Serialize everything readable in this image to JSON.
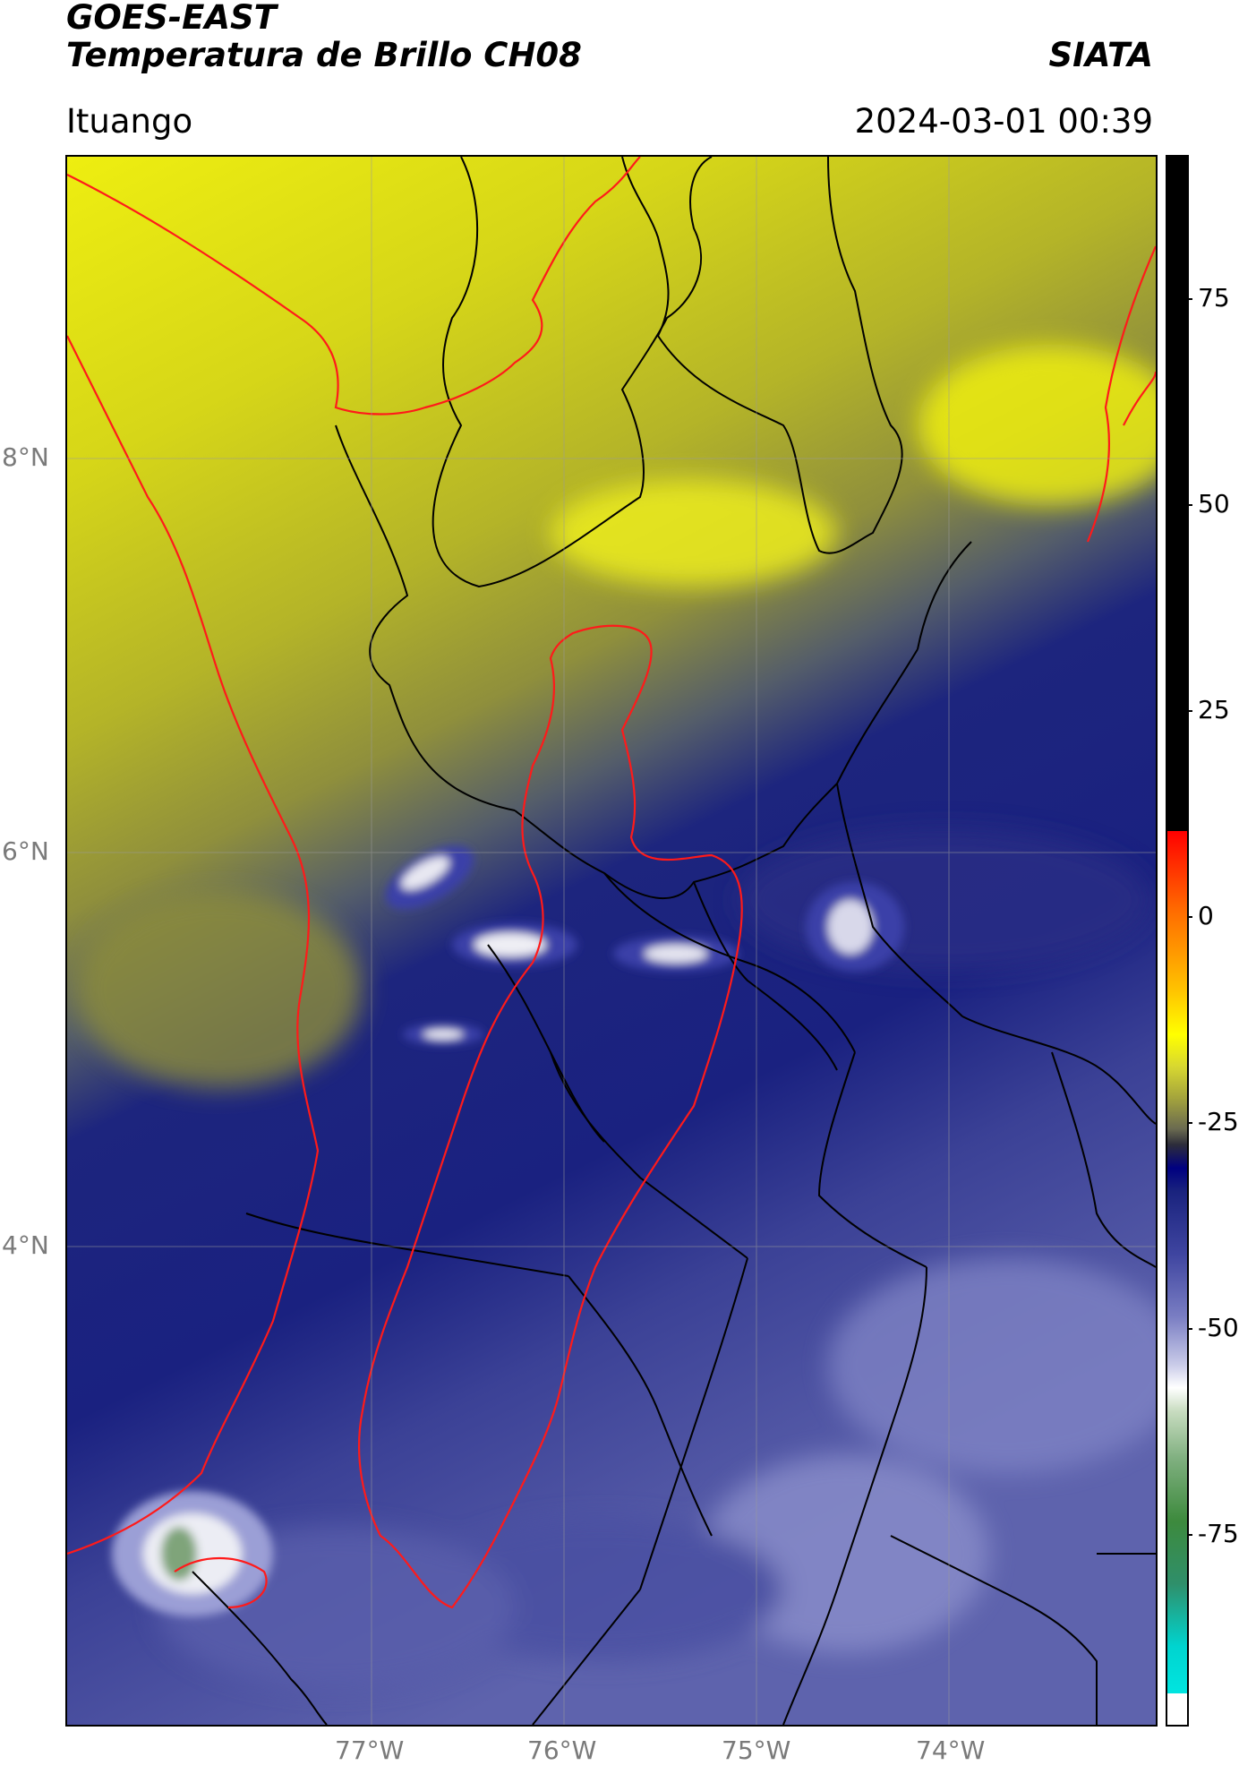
{
  "header": {
    "title_line1": "GOES-EAST",
    "title_line2": "Temperatura de Brillo CH08",
    "brand": "SIATA",
    "location": "Ituango",
    "timestamp": "2024-03-01 00:39"
  },
  "map": {
    "lon_ticks": [
      "77°W",
      "76°W",
      "75°W",
      "74°W"
    ],
    "lat_ticks": [
      "8°N",
      "6°N",
      "4°N"
    ],
    "colors": {
      "yellow": "#e6e617",
      "olive": "#9a9a32",
      "navy": "#1a237e",
      "lavender": "#6a70b8",
      "red_outline": "#ff1a1a",
      "black_outline": "#000000"
    }
  },
  "colorbar": {
    "labels": [
      "75",
      "50",
      "25",
      "0",
      "-25",
      "-50",
      "-75"
    ]
  }
}
